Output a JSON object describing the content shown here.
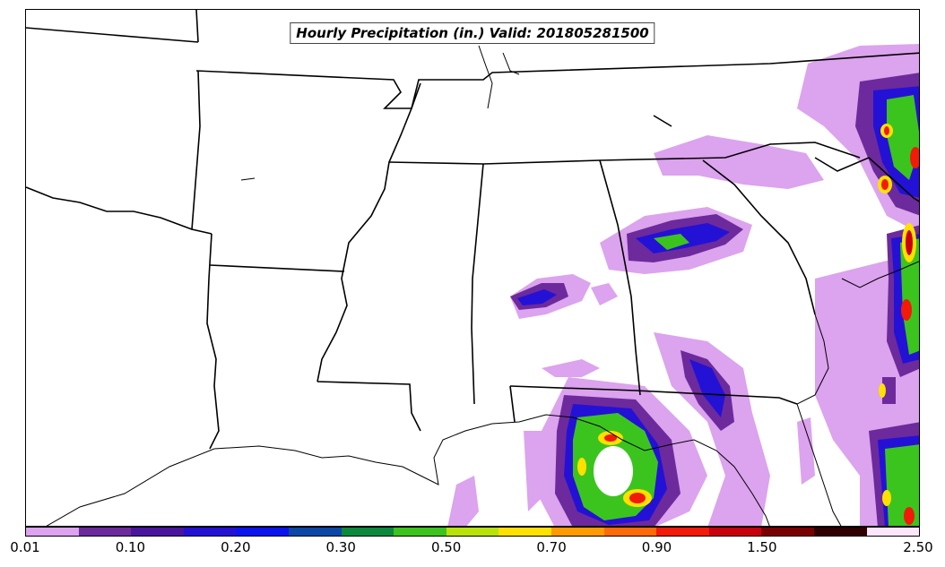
{
  "map": {
    "title": "Hourly Precipitation (in.) Valid: 201805281500"
  },
  "colorbar": {
    "colors": [
      "#dca3ee",
      "#6d2a9c",
      "#4a159e",
      "#2411d6",
      "#0a14f0",
      "#0a47a8",
      "#0a8a3c",
      "#3cc41e",
      "#b8e20a",
      "#ffe000",
      "#ff9a00",
      "#ff6a08",
      "#f21a08",
      "#c8000c",
      "#7a0000",
      "#300000",
      "#fde6fb"
    ],
    "tick_labels": [
      "0.01",
      "0.10",
      "0.20",
      "0.30",
      "0.50",
      "0.70",
      "0.90",
      "1.50",
      "2.50"
    ]
  }
}
